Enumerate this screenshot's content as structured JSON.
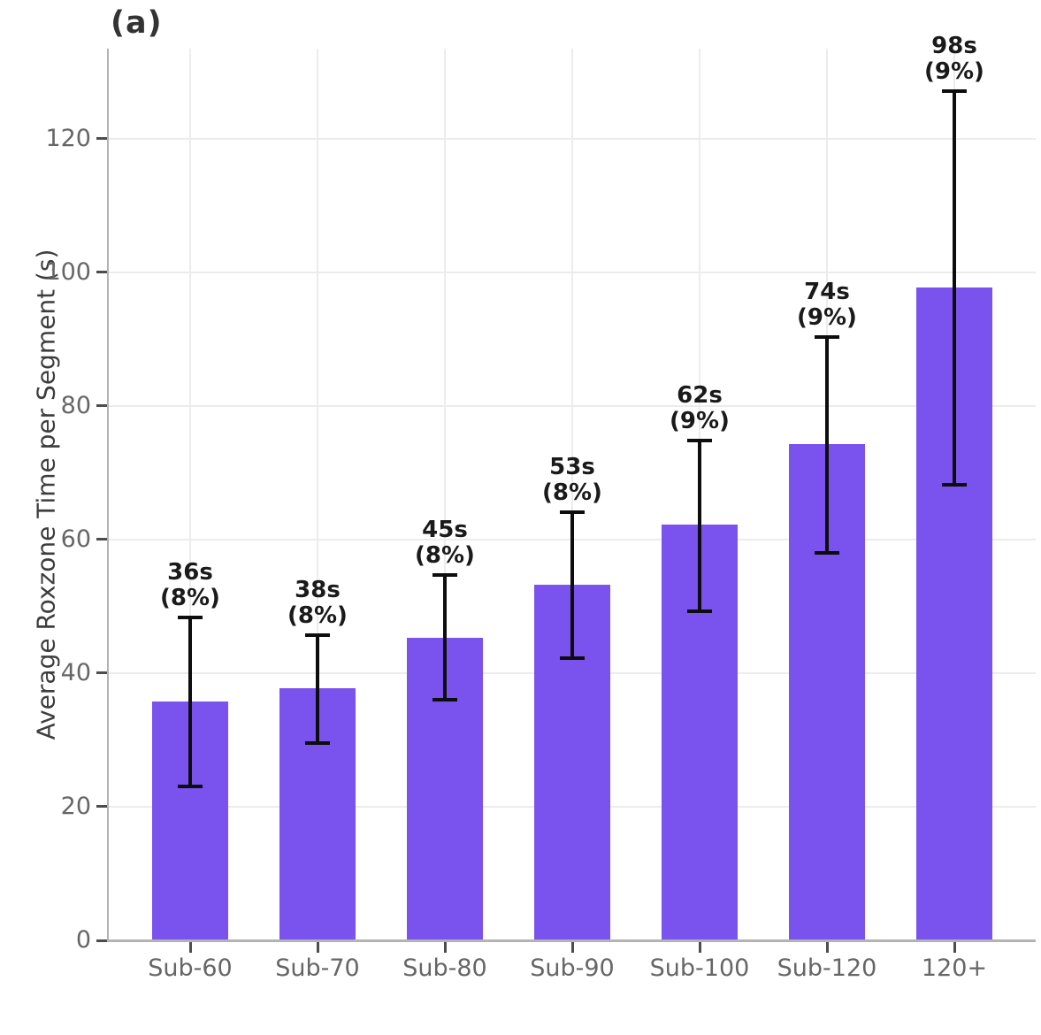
{
  "panel": {
    "label": "(a)"
  },
  "chart_data": {
    "type": "bar",
    "title": "(a)",
    "categories": [
      "Sub-60",
      "Sub-70",
      "Sub-80",
      "Sub-90",
      "Sub-100",
      "Sub-120",
      "120+"
    ],
    "values": [
      35.7,
      37.7,
      45.3,
      53.2,
      62.2,
      74.3,
      97.8
    ],
    "bar_labels": [
      [
        "36s",
        "(8%)"
      ],
      [
        "38s",
        "(8%)"
      ],
      [
        "45s",
        "(8%)"
      ],
      [
        "53s",
        "(8%)"
      ],
      [
        "62s",
        "(9%)"
      ],
      [
        "74s",
        "(9%)"
      ],
      [
        "98s",
        "(9%)"
      ]
    ],
    "error_low": [
      23.1,
      29.5,
      36.0,
      42.3,
      49.3,
      58.0,
      68.2
    ],
    "error_high": [
      48.3,
      45.7,
      54.7,
      64.1,
      74.8,
      90.3,
      127.2
    ],
    "ylabel": "Average Roxzone Time per Segment (s)",
    "xlabel": "",
    "yticks": [
      0,
      20,
      40,
      60,
      80,
      100,
      120
    ],
    "ylim": [
      0,
      133.5
    ],
    "grid": true,
    "legend_position": "none",
    "colors": {
      "bar": "#7A52EE",
      "error": "#0d0d0d",
      "grid": "#ececec",
      "spine": "#b3b3b3",
      "tick_mark": "#4d4d4d",
      "tick_label": "#666666",
      "axis_label": "#3d3d3d",
      "annotation": "#1a1a1a",
      "panel_label": "#333333",
      "background": "#ffffff"
    }
  }
}
